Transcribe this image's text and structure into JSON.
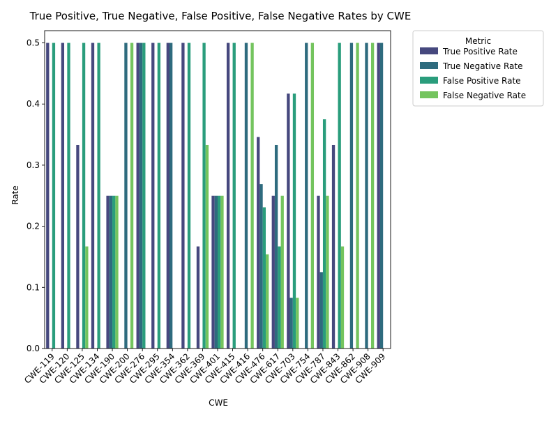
{
  "chart_data": {
    "type": "bar",
    "title": "True Positive, True Negative, False Positive, False Negative Rates by CWE",
    "xlabel": "CWE",
    "ylabel": "Rate",
    "ylim": [
      0,
      0.52
    ],
    "yticks": [
      "0.0",
      "0.1",
      "0.2",
      "0.3",
      "0.4",
      "0.5"
    ],
    "grid": false,
    "legend": {
      "title": "Metric",
      "placement": "outside-top-right"
    },
    "categories": [
      "CWE-119",
      "CWE-120",
      "CWE-125",
      "CWE-134",
      "CWE-190",
      "CWE-200",
      "CWE-276",
      "CWE-295",
      "CWE-354",
      "CWE-362",
      "CWE-369",
      "CWE-401",
      "CWE-415",
      "CWE-416",
      "CWE-476",
      "CWE-617",
      "CWE-703",
      "CWE-754",
      "CWE-787",
      "CWE-843",
      "CWE-862",
      "CWE-908",
      "CWE-909"
    ],
    "series": [
      {
        "name": "True Positive Rate",
        "color": "#46487e",
        "values": [
          0.5,
          0.5,
          0.333,
          0.5,
          0.25,
          0,
          0.5,
          0.5,
          0.5,
          0.5,
          0.167,
          0.25,
          0.5,
          0,
          0.346,
          0.25,
          0.417,
          0,
          0.25,
          0.333,
          0,
          0,
          0.5
        ]
      },
      {
        "name": "True Negative Rate",
        "color": "#2e6b7e",
        "values": [
          0,
          0,
          0,
          0,
          0.25,
          0.5,
          0.5,
          0,
          0.5,
          0,
          0,
          0.25,
          0,
          0.5,
          0.269,
          0.333,
          0.083,
          0.5,
          0.125,
          0,
          0.5,
          0.5,
          0.5
        ]
      },
      {
        "name": "False Positive Rate",
        "color": "#2a9d7c",
        "values": [
          0.5,
          0.5,
          0.5,
          0.5,
          0.25,
          0,
          0.5,
          0.5,
          0,
          0.5,
          0.5,
          0.25,
          0.5,
          0,
          0.231,
          0.167,
          0.417,
          0,
          0.375,
          0.5,
          0,
          0,
          0
        ]
      },
      {
        "name": "False Negative Rate",
        "color": "#74c45e",
        "values": [
          0,
          0,
          0.167,
          0,
          0.25,
          0.5,
          0,
          0,
          0,
          0,
          0.333,
          0.25,
          0,
          0.5,
          0.154,
          0.25,
          0.083,
          0.5,
          0.25,
          0.167,
          0.5,
          0.5,
          0
        ]
      }
    ]
  }
}
